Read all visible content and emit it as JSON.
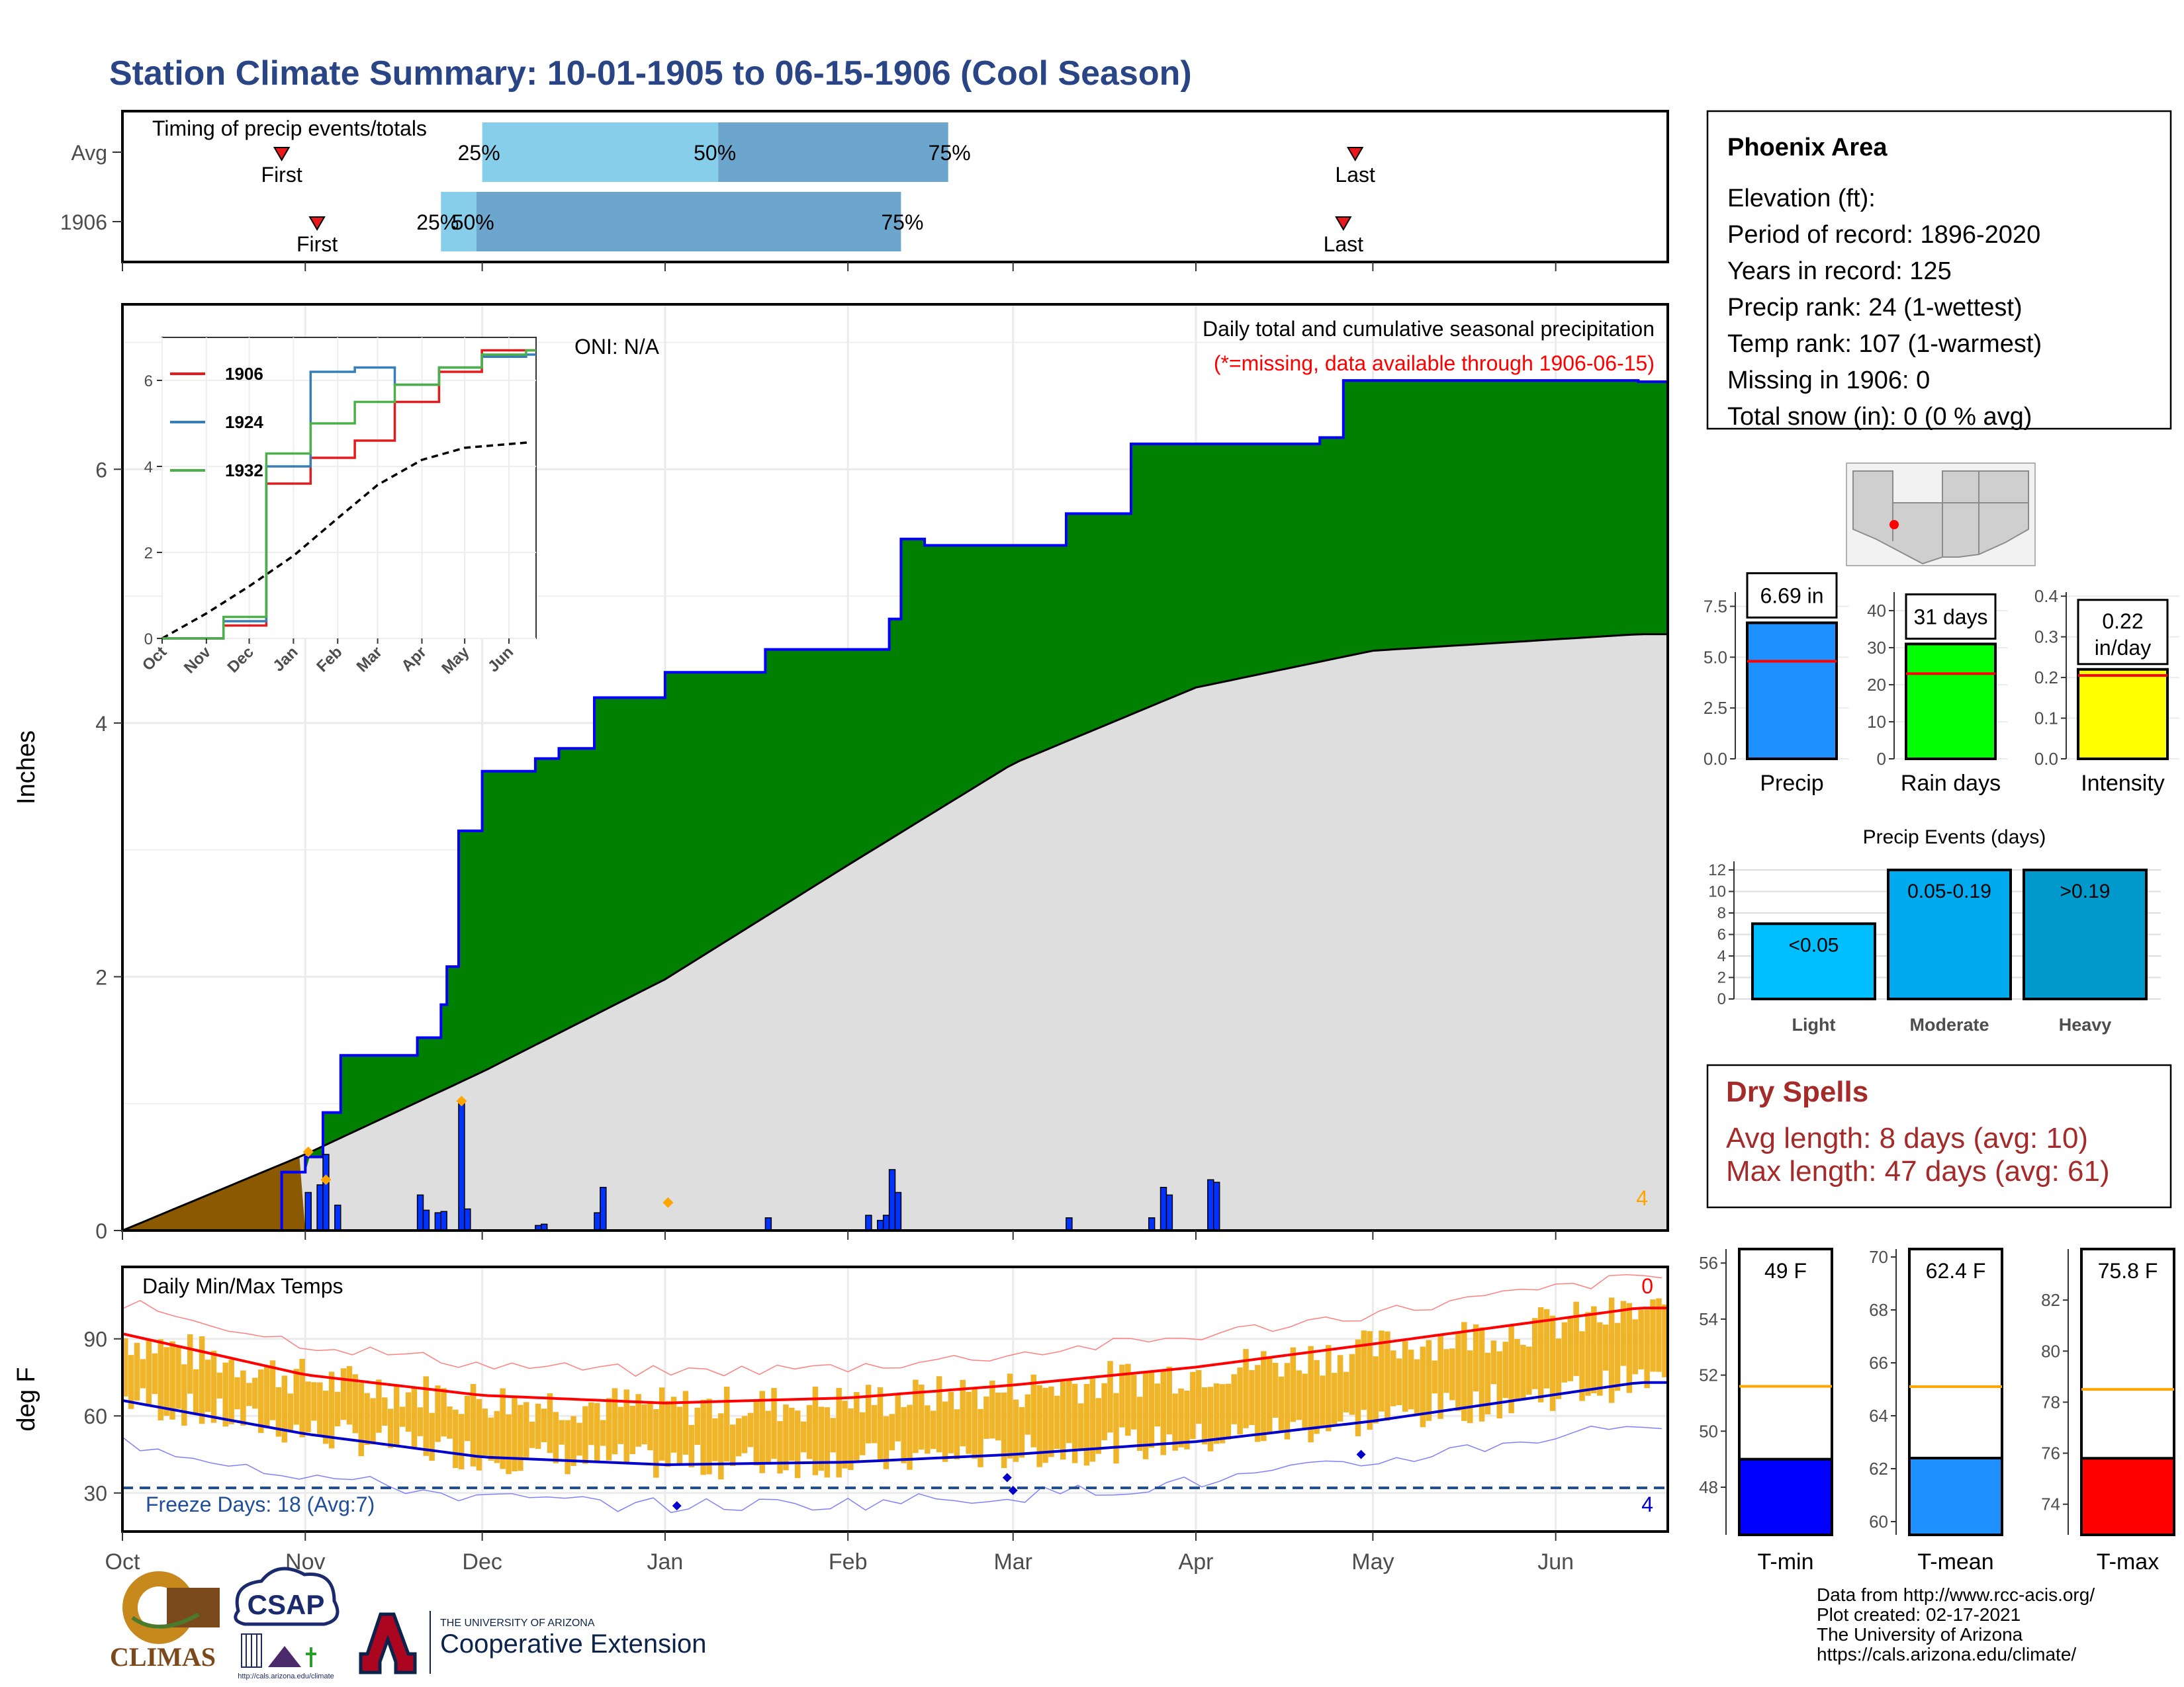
{
  "title": "Station Climate Summary: 10-01-1905 to 06-15-1906 (Cool Season)",
  "colors": {
    "title": "#2a4586",
    "cumulative_fill": "#008000",
    "cumulative_line": "#0000ff",
    "average_fill": "#dedede",
    "pre_season_fill": "#8b5a00",
    "daily_bar": "#0033ff",
    "missing_marker": "#ffa500",
    "temp_bar": "#f0b429",
    "temp_max_avg": "#ff0000",
    "temp_min_avg": "#0000cc",
    "freeze_line": "#1f4e9b",
    "precip_bar": "#1e90ff",
    "raindays_bar": "#00ff00",
    "intensity_bar": "#ffff00",
    "light_bar": "#00bfff",
    "moderate_bar": "#00aaee",
    "heavy_bar": "#0099cc",
    "tmin_bar": "#0000ff",
    "tmean_bar": "#1e90ff",
    "tmax_bar": "#ff0000",
    "avg_line": "#ff0000",
    "temp_avg_line": "#ffa500",
    "dry_spells": "#a52a2a"
  },
  "timing": {
    "heading": "Timing of precip events/totals",
    "rows": [
      {
        "label": "Avg",
        "first_label": "First",
        "last_label": "Last",
        "first": "Oct 28",
        "last": "Apr 28",
        "p25_label": "25%",
        "p50_label": "50%",
        "p75_label": "75%",
        "p25": "Dec 1",
        "p50": "Jan 10",
        "p75": "Feb 18"
      },
      {
        "label": "1906",
        "first_label": "First",
        "last_label": "Last",
        "first": "Nov 3",
        "last": "Apr 26",
        "p25_label": "25%",
        "p50_label": "50%",
        "p75_label": "75%",
        "p25": "Nov 24",
        "p50": "Nov 30",
        "p75": "Feb 10"
      }
    ]
  },
  "main_panel": {
    "ylabel": "Inches",
    "yticks": [
      "0",
      "2",
      "4",
      "6"
    ],
    "heading": "Daily total and cumulative seasonal precipitation",
    "missing_note": "(*=missing, data available through 1906-06-15)",
    "oni": "ONI: N/A",
    "missing_count": "4",
    "xticks": [
      "Oct",
      "Nov",
      "Dec",
      "Jan",
      "Feb",
      "Mar",
      "Apr",
      "May",
      "Jun"
    ]
  },
  "inset": {
    "yticks": [
      "0",
      "2",
      "4",
      "6"
    ],
    "xticks": [
      "Oct",
      "Nov",
      "Dec",
      "Jan",
      "Feb",
      "Mar",
      "Apr",
      "May",
      "Jun"
    ],
    "legend": [
      "1906",
      "1924",
      "1932"
    ]
  },
  "temp_panel": {
    "heading": "Daily Min/Max Temps",
    "ylabel": "deg F",
    "yticks": [
      "30",
      "60",
      "90"
    ],
    "freeze_days": "Freeze Days: 18 (Avg:7)",
    "count_top": "0",
    "count_bottom": "4"
  },
  "station": {
    "name": "Phoenix Area",
    "lines": [
      "Elevation (ft):",
      "Period of record: 1896-2020",
      "Years in record: 125",
      "Precip rank: 24 (1-wettest)",
      "Temp rank: 107 (1-warmest)",
      "Missing in 1906: 0",
      "Total snow (in): 0 (0 % avg)"
    ]
  },
  "small_bars": [
    {
      "label": "Precip",
      "value_text": "6.69 in",
      "value": 6.69,
      "avg": 4.8,
      "ymax": 8.2,
      "yticks": [
        "0.0",
        "2.5",
        "5.0",
        "7.5"
      ],
      "tickvals": [
        0,
        2.5,
        5,
        7.5
      ]
    },
    {
      "label": "Rain days",
      "value_text": "31 days",
      "value": 31,
      "avg": 23,
      "ymax": 45,
      "yticks": [
        "0",
        "10",
        "20",
        "30",
        "40"
      ],
      "tickvals": [
        0,
        10,
        20,
        30,
        40
      ]
    },
    {
      "label": "Intensity",
      "value_text": "0.22 in/day",
      "value_line1": "0.22",
      "value_line2": "in/day",
      "value": 0.22,
      "avg": 0.205,
      "ymax": 0.41,
      "yticks": [
        "0.0",
        "0.1",
        "0.2",
        "0.3",
        "0.4"
      ],
      "tickvals": [
        0,
        0.1,
        0.2,
        0.3,
        0.4
      ]
    }
  ],
  "precip_events": {
    "title": "Precip Events (days)",
    "yticks": [
      "0",
      "2",
      "4",
      "6",
      "8",
      "10",
      "12"
    ],
    "bars": [
      {
        "category": "Light",
        "label": "<0.05",
        "value": 7
      },
      {
        "category": "Moderate",
        "label": "0.05-0.19",
        "value": 12
      },
      {
        "category": "Heavy",
        "label": ">0.19",
        "value": 12
      }
    ]
  },
  "dry_spells": {
    "title": "Dry Spells",
    "avg_length": "Avg length: 8 days (avg: 10)",
    "max_length": "Max length: 47 days (avg: 61)"
  },
  "temp_bars": [
    {
      "label": "T-min",
      "value_text": "49 F",
      "value": 49,
      "avg": 51.6,
      "ymin": 46.3,
      "ymax": 56.5,
      "yticks": [
        "48",
        "50",
        "52",
        "54",
        "56"
      ],
      "tickvals": [
        48,
        50,
        52,
        54,
        56
      ]
    },
    {
      "label": "T-mean",
      "value_text": "62.4 F",
      "value": 62.4,
      "avg": 65.1,
      "ymin": 59.5,
      "ymax": 70.3,
      "yticks": [
        "60",
        "62",
        "64",
        "66",
        "68",
        "70"
      ],
      "tickvals": [
        60,
        62,
        64,
        66,
        68,
        70
      ]
    },
    {
      "label": "T-max",
      "value_text": "75.8 F",
      "value": 75.8,
      "avg": 78.5,
      "ymin": 72.8,
      "ymax": 84.0,
      "yticks": [
        "74",
        "76",
        "78",
        "80",
        "82"
      ],
      "tickvals": [
        74,
        76,
        78,
        80,
        82
      ]
    }
  ],
  "footer": {
    "lines": [
      "Data from http://www.rcc-acis.org/",
      "Plot created: 02-17-2021",
      "The University of Arizona",
      "https://cals.arizona.edu/climate/"
    ],
    "logo_climas": "CLIMAS",
    "logo_csap": "CSAP",
    "logo_csap_url": "http://cals.arizona.edu/climate",
    "logo_ua_small": "THE UNIVERSITY OF ARIZONA",
    "logo_ua_big": "Cooperative Extension"
  },
  "chart_data": {
    "type": "area",
    "title": "Daily total and cumulative seasonal precipitation",
    "ylabel": "Inches",
    "ylim": [
      0,
      7.3
    ],
    "season_total_in": 6.69,
    "series": [
      {
        "name": "1906",
        "x": [
          "Oct 1",
          "Oct 28",
          "Nov 1",
          "Nov 4",
          "Nov 7",
          "Nov 20",
          "Nov 24",
          "Nov 25",
          "Nov 27",
          "Dec 1",
          "Dec 10",
          "Dec 14",
          "Dec 20",
          "Jan 1",
          "Jan 18",
          "Feb 8",
          "Feb 10",
          "Feb 14",
          "Mar 10",
          "Mar 21",
          "Apr 22",
          "Apr 26",
          "Jun 15"
        ],
        "values": [
          0.0,
          0.46,
          0.58,
          0.93,
          1.38,
          1.52,
          1.78,
          2.08,
          3.15,
          3.62,
          3.72,
          3.8,
          4.2,
          4.4,
          4.58,
          4.82,
          5.45,
          5.4,
          5.65,
          6.2,
          6.25,
          6.7,
          6.69
        ]
      },
      {
        "name": "Avg",
        "x": [
          "Oct 1",
          "Nov 1",
          "Dec 1",
          "Jan 1",
          "Feb 1",
          "Mar 1",
          "Apr 1",
          "May 1",
          "Jun 15"
        ],
        "values": [
          0.0,
          0.6,
          1.25,
          1.98,
          2.88,
          3.68,
          4.28,
          4.57,
          4.7
        ]
      }
    ],
    "daily_precip": {
      "x": [
        "Nov 1",
        "Nov 3",
        "Nov 4",
        "Nov 6",
        "Nov 20",
        "Nov 21",
        "Nov 23",
        "Nov 24",
        "Nov 27",
        "Nov 28",
        "Dec 10",
        "Dec 11",
        "Dec 20",
        "Dec 21",
        "Jan 18",
        "Feb 4",
        "Feb 6",
        "Feb 7",
        "Feb 8",
        "Feb 9",
        "Mar 10",
        "Mar 24",
        "Mar 26",
        "Mar 27",
        "Apr 3",
        "Apr 4"
      ],
      "values": [
        0.3,
        0.36,
        0.6,
        0.2,
        0.28,
        0.16,
        0.14,
        0.15,
        1.0,
        0.17,
        0.04,
        0.05,
        0.14,
        0.34,
        0.1,
        0.12,
        0.08,
        0.12,
        0.48,
        0.3,
        0.1,
        0.1,
        0.34,
        0.28,
        0.4,
        0.38
      ]
    },
    "inset": {
      "type": "line",
      "series": [
        {
          "name": "1906",
          "x": [
            "Oct",
            "Nov",
            "Dec",
            "Jan",
            "Feb",
            "Mar",
            "Apr",
            "May",
            "Jun"
          ],
          "values": [
            0.0,
            0.3,
            3.6,
            4.2,
            4.6,
            5.5,
            6.2,
            6.7,
            6.7
          ]
        },
        {
          "name": "1924",
          "x": [
            "Oct",
            "Nov",
            "Dec",
            "Jan",
            "Feb",
            "Mar",
            "Apr",
            "May",
            "Jun"
          ],
          "values": [
            0.0,
            0.4,
            4.0,
            6.2,
            6.3,
            5.9,
            6.3,
            6.55,
            6.6
          ]
        },
        {
          "name": "1932",
          "x": [
            "Oct",
            "Nov",
            "Dec",
            "Jan",
            "Feb",
            "Mar",
            "Apr",
            "May",
            "Jun"
          ],
          "values": [
            0.0,
            0.5,
            4.3,
            5.0,
            5.5,
            5.9,
            6.3,
            6.6,
            6.7
          ]
        }
      ]
    },
    "temperatures": {
      "ylabel": "deg F",
      "ylim": [
        15,
        118
      ],
      "x": [
        "Oct 1",
        "Nov 1",
        "Dec 1",
        "Jan 1",
        "Feb 1",
        "Mar 1",
        "Apr 1",
        "May 1",
        "Jun 15"
      ],
      "avg_max": [
        92,
        76,
        68,
        65,
        67,
        72,
        79,
        88,
        102
      ],
      "avg_min": [
        66,
        53,
        44,
        41,
        42,
        45,
        50,
        58,
        73
      ],
      "freeze_threshold": 32,
      "freeze_days": 18,
      "freeze_days_avg": 7
    }
  }
}
